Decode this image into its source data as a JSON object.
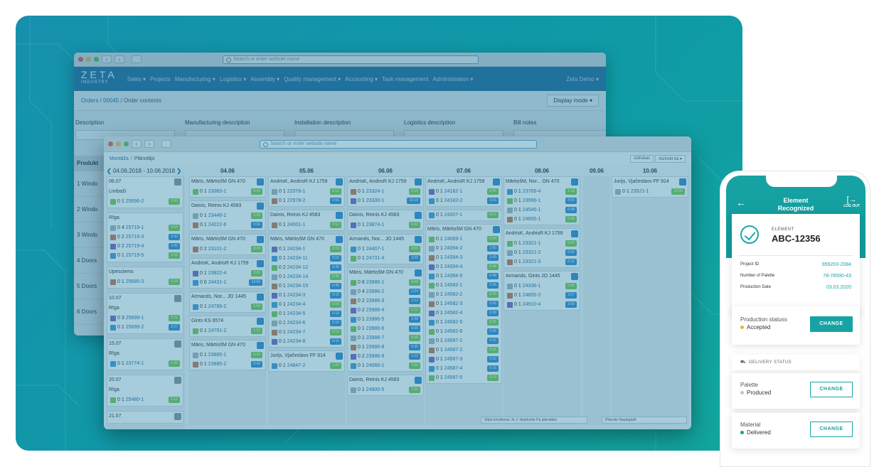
{
  "back_window": {
    "url_placeholder": "Search or enter website name",
    "logo_main": "ZETA",
    "logo_sub": "INDUSTRY",
    "nav": [
      "Sales ▾",
      "Projects",
      "Manufacturing ▾",
      "Logistics ▾",
      "Assembly ▾",
      "Quality management ▾",
      "Accounting ▾",
      "Task management",
      "Administration ▾"
    ],
    "user": "Zeta Demo ▾",
    "breadcrumb": [
      "Orders",
      "00045",
      "Order contents"
    ],
    "display_mode": "Display mode ▾",
    "desc_headers": [
      "Description",
      "Manufacturing description",
      "Installation description",
      "Logistics description",
      "Bill notes"
    ],
    "rows_header": "Produkt",
    "rows": [
      "1  Windo",
      "2  Windo",
      "3  Windo",
      "4  Doors",
      "5  Doors",
      "6  Doors"
    ]
  },
  "front_window": {
    "url_placeholder": "Search or enter website name",
    "crumb": [
      "Montāža",
      "Plānotājs"
    ],
    "buttons": [
      "Izdrukas",
      "Atzīmēt kā ▾"
    ],
    "date_range": "04.06.2018 - 10.06.2018",
    "day_headers": [
      "04.06",
      "05.06",
      "06.06",
      "07.06",
      "08.06",
      "09.06",
      "10.06"
    ],
    "left_groups": [
      {
        "title": "06.07",
        "sub": "Limbaži",
        "jobs": [
          [
            "0",
            "1",
            "25696-2",
            "1:00"
          ]
        ]
      },
      {
        "title": "",
        "sub": "Rīga",
        "jobs": [
          [
            "0",
            "4",
            "25719-1",
            "3:04"
          ],
          [
            "0",
            "2",
            "25719-3",
            "2:42"
          ],
          [
            "0",
            "2",
            "25719-4",
            "2:42"
          ],
          [
            "0",
            "1",
            "25719-5",
            "1:01"
          ]
        ]
      },
      {
        "title": "",
        "sub": "Upesciems",
        "jobs": [
          [
            "0",
            "1",
            "25685-3",
            "2:24"
          ]
        ]
      },
      {
        "title": "10.07",
        "sub": "Rīga",
        "jobs": [
          [
            "0",
            "3",
            "25699-1",
            "2:21"
          ],
          [
            "0",
            "1",
            "25699-2",
            "2:27"
          ]
        ]
      },
      {
        "title": "15.07",
        "sub": "Rīga",
        "jobs": [
          [
            "0",
            "1",
            "23774-1",
            "1:00"
          ]
        ]
      },
      {
        "title": "20.07",
        "sub": "Rīga",
        "jobs": [
          [
            "0",
            "1",
            "25480-1",
            "2:12"
          ]
        ]
      },
      {
        "title": "21.07",
        "sub": "",
        "jobs": []
      }
    ],
    "columns": [
      {
        "groups": [
          {
            "title": "Māris, MārtiņšM   GN 470",
            "jobs": [
              [
                "0",
                "1",
                "23083-1",
                "8:00"
              ]
            ]
          },
          {
            "title": "Dainis, Reinis      KJ 4583",
            "jobs": [
              [
                "0",
                "1",
                "23446-1",
                "2:30"
              ],
              [
                "0",
                "1",
                "24222-6",
                "0:06"
              ]
            ]
          },
          {
            "title": "Māris, MārtiņšM   GN 470",
            "jobs": [
              [
                "0",
                "2",
                "23101-2",
                "8:00"
              ]
            ]
          },
          {
            "title": "AndrisK, AndrisR  KJ 1759",
            "jobs": [
              [
                "0",
                "1",
                "23822-4",
                "2:00"
              ],
              [
                "0",
                "6",
                "24431-1",
                "12:00"
              ]
            ]
          },
          {
            "title": "Armands, Nor...   JO 1445",
            "jobs": [
              [
                "0",
                "1",
                "24789-2",
                "1:00"
              ]
            ]
          },
          {
            "title": "Gints                KS 6574",
            "jobs": [
              [
                "0",
                "1",
                "24791-2",
                "1:12"
              ]
            ]
          },
          {
            "title": "Māris, MārtiņšM   GN 470",
            "jobs": [
              [
                "0",
                "1",
                "23885-1",
                "0:42"
              ],
              [
                "0",
                "1",
                "23885-2",
                "0:42"
              ]
            ]
          }
        ]
      },
      {
        "groups": [
          {
            "title": "AndrisK, AndrisR  KJ 1759",
            "jobs": [
              [
                "0",
                "1",
                "22978-1",
                "0:12"
              ],
              [
                "0",
                "1",
                "22978-2",
                "0:06"
              ]
            ]
          },
          {
            "title": "Dainis, Reinis      KJ 4583",
            "jobs": [
              [
                "0",
                "1",
                "24001-1",
                "0:12"
              ]
            ]
          },
          {
            "title": "Māris, MārtiņšM   GN 470",
            "jobs": [
              [
                "0",
                "1",
                "24234-1",
                "0:15"
              ],
              [
                "0",
                "1",
                "24234-11",
                "0:15"
              ],
              [
                "0",
                "2",
                "24234-12",
                "0:30"
              ],
              [
                "0",
                "1",
                "24234-14",
                "0:45"
              ],
              [
                "0",
                "1",
                "24234-15",
                "0:45"
              ],
              [
                "0",
                "1",
                "24234-3",
                "0:15"
              ],
              [
                "0",
                "1",
                "24234-4",
                "0:15"
              ],
              [
                "0",
                "1",
                "24234-5",
                "0:15"
              ],
              [
                "0",
                "1",
                "24234-6",
                "0:15"
              ],
              [
                "0",
                "1",
                "24234-7",
                "0:15"
              ],
              [
                "0",
                "1",
                "24234-8",
                "0:15"
              ]
            ]
          },
          {
            "title": "Jurijs, Vjačeslavs   FF 914",
            "jobs": [
              [
                "0",
                "1",
                "24847-2",
                "1:00"
              ]
            ]
          }
        ]
      },
      {
        "groups": [
          {
            "title": "AndrisK, AndrisR  KJ 1759",
            "jobs": [
              [
                "0",
                "1",
                "23324-1",
                "0:18"
              ],
              [
                "0",
                "1",
                "23330-1",
                "10:18"
              ]
            ]
          },
          {
            "title": "Dainis, Reinis      KJ 4583",
            "jobs": [
              [
                "0",
                "1",
                "23874-1",
                "0:42"
              ]
            ]
          },
          {
            "title": "Armands, Nor...   JO 1445",
            "jobs": [
              [
                "0",
                "1",
                "24407-1",
                "4:00"
              ],
              [
                "0",
                "1",
                "24731-4",
                "2:00"
              ]
            ]
          },
          {
            "title": "Māris, MārtiņšM   GN 470",
            "jobs": [
              [
                "0",
                "8",
                "23986-1",
                "4:48"
              ],
              [
                "0",
                "4",
                "23986-2",
                "2:24"
              ],
              [
                "0",
                "2",
                "23986-3",
                "1:12"
              ],
              [
                "0",
                "2",
                "23986-4",
                "1:12"
              ],
              [
                "0",
                "1",
                "23986-5",
                "0:36"
              ],
              [
                "0",
                "1",
                "23986-6",
                "0:36"
              ],
              [
                "0",
                "1",
                "23986-7",
                "0:36"
              ],
              [
                "0",
                "1",
                "23986-8",
                "0:36"
              ],
              [
                "0",
                "2",
                "23986-9",
                "1:12"
              ],
              [
                "0",
                "1",
                "24066-1",
                "7:00"
              ]
            ]
          },
          {
            "title": "Dainis, Reinis      KJ 4583",
            "jobs": [
              [
                "0",
                "1",
                "24800-5",
                "1:00"
              ]
            ]
          }
        ]
      },
      {
        "groups": [
          {
            "title": "AndrisK, AndrisR  KJ 1759",
            "jobs": [
              [
                "0",
                "1",
                "24182-1",
                "0:36"
              ],
              [
                "0",
                "1",
                "24182-2",
                "0:06"
              ]
            ]
          },
          {
            "title": "",
            "jobs": [
              [
                "0",
                "1",
                "24307-1",
                "0:12"
              ]
            ]
          },
          {
            "title": "Māris, MārtiņšM   GN 470",
            "jobs": [
              [
                "0",
                "1",
                "24069-1",
                "0:54"
              ],
              [
                "0",
                "1",
                "24394-2",
                "1:00"
              ],
              [
                "0",
                "1",
                "24394-3",
                "1:00"
              ],
              [
                "0",
                "1",
                "24394-4",
                "0:48"
              ],
              [
                "0",
                "1",
                "24394-5",
                "0:48"
              ],
              [
                "0",
                "1",
                "24582-1",
                "0:36"
              ],
              [
                "0",
                "1",
                "24582-2",
                "0:36"
              ],
              [
                "0",
                "1",
                "24582-3",
                "0:36"
              ],
              [
                "0",
                "1",
                "24582-4",
                "0:36"
              ],
              [
                "0",
                "1",
                "24582-5",
                "0:36"
              ],
              [
                "0",
                "1",
                "24582-6",
                "0:36"
              ],
              [
                "0",
                "1",
                "24587-1",
                "0:15"
              ],
              [
                "0",
                "1",
                "24587-2",
                "0:15"
              ],
              [
                "0",
                "1",
                "24587-3",
                "0:15"
              ],
              [
                "0",
                "1",
                "24587-4",
                "0:15"
              ],
              [
                "0",
                "1",
                "24587-5",
                "0:15"
              ]
            ]
          }
        ]
      },
      {
        "groups": [
          {
            "title": "MārtiņšM, Nor...   GN 470",
            "jobs": [
              [
                "0",
                "1",
                "23769-4",
                "1:18"
              ],
              [
                "0",
                "1",
                "23996-1",
                "8:00"
              ],
              [
                "0",
                "1",
                "24546-1",
                "0:48"
              ],
              [
                "0",
                "1",
                "24605-1",
                "0:48"
              ]
            ]
          },
          {
            "title": "AndrisK, AndrisR  KJ 1759",
            "jobs": [
              [
                "0",
                "1",
                "23321-1",
                "0:42"
              ],
              [
                "0",
                "1",
                "23321-2",
                "0:42"
              ],
              [
                "0",
                "1",
                "23321-3",
                "0:12"
              ]
            ]
          },
          {
            "title": "Armands, Gints   JO 1445",
            "jobs": [
              [
                "0",
                "1",
                "24336-1",
                "0:30"
              ],
              [
                "0",
                "1",
                "24855-2",
                "2:27"
              ],
              [
                "0",
                "1",
                "24910-4",
                "3:00"
              ]
            ]
          }
        ]
      },
      {
        "groups": []
      },
      {
        "groups": [
          {
            "title": "Jurijs, Vjačeslavs   FF 914",
            "jobs": [
              [
                "0",
                "1",
                "23521-1",
                "12:00"
              ]
            ]
          }
        ]
      }
    ],
    "footer_filter_1": "Slēpt brīvdienas   Jā ⇕   Nepilnotie   Pa plānotāim",
    "footer_filter_2": "Plānotie   Nepiegādē"
  },
  "phone": {
    "header_title": "Element Recognized",
    "logout": "LOG OUT",
    "element_label": "ELEMENT",
    "element_code": "ABC-12356",
    "fields": [
      {
        "k": "Project ID",
        "v": "959203-2084"
      },
      {
        "k": "Number of Palette",
        "v": "78-78590-43"
      },
      {
        "k": "Production Date",
        "v": "03.03.2020"
      }
    ],
    "production_label": "Production statuss",
    "production_value": "Accepted",
    "change": "CHANGE",
    "delivery_header": "DELIVERY STATUS",
    "palette_label": "Palette",
    "palette_value": "Produced",
    "material_label": "Material",
    "material_value": "Delivered",
    "colors": {
      "teal": "#17a3a3",
      "accepted_dot": "#e0b630",
      "produced_dot": "#bfc6cb",
      "delivered_dot": "#1aa66c"
    }
  }
}
